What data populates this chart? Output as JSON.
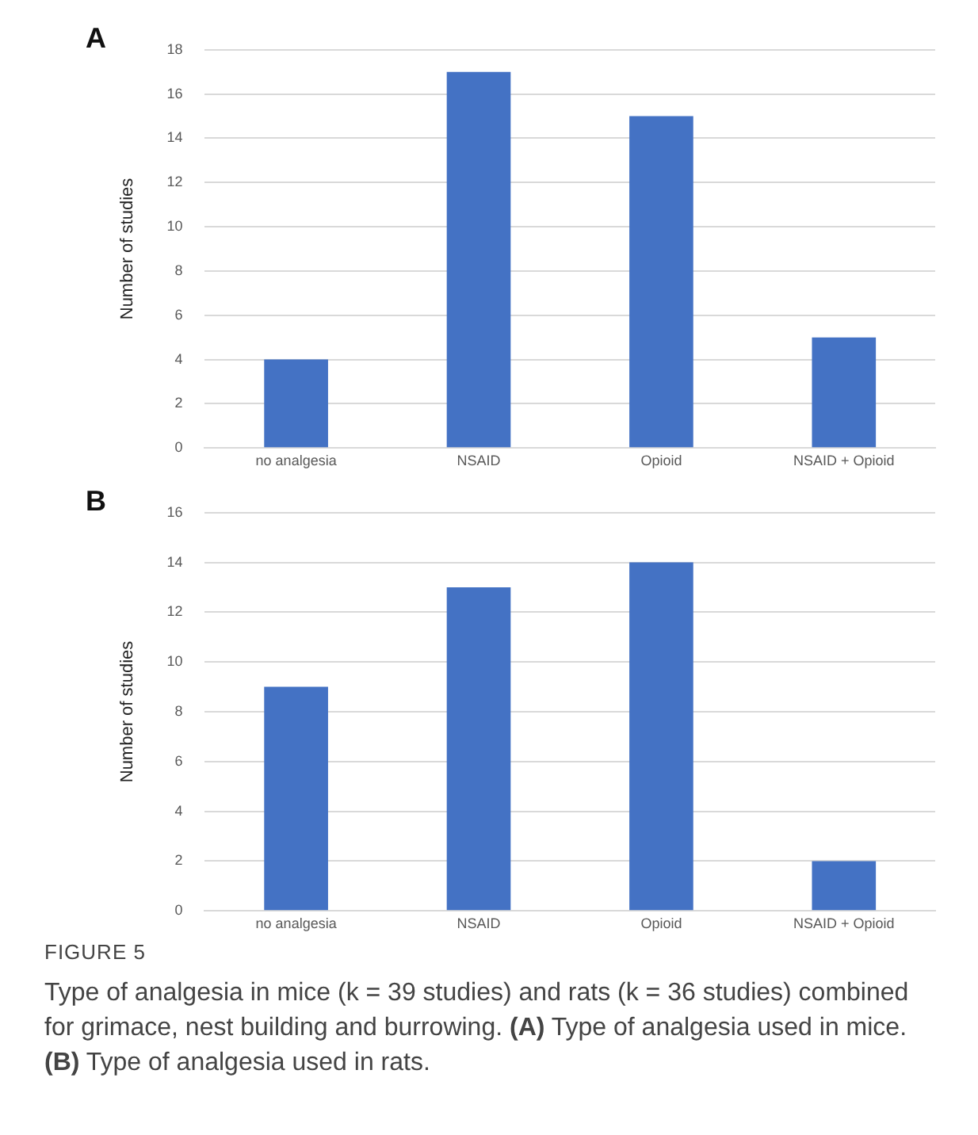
{
  "chart_data": [
    {
      "type": "bar",
      "title": "A",
      "ylabel": "Number of studies",
      "categories": [
        "no analgesia",
        "NSAID",
        "Opioid",
        "NSAID + Opioid"
      ],
      "values": [
        4,
        17,
        15,
        5
      ],
      "color": "#4472c4",
      "ylim": [
        0,
        18
      ],
      "yticks": [
        0,
        2,
        4,
        6,
        8,
        10,
        12,
        14,
        16,
        18
      ],
      "grid": "y",
      "legend": false
    },
    {
      "type": "bar",
      "title": "B",
      "ylabel": "Number of studies",
      "categories": [
        "no analgesia",
        "NSAID",
        "Opioid",
        "NSAID + Opioid"
      ],
      "values": [
        9,
        13,
        14,
        2
      ],
      "color": "#4472c4",
      "ylim": [
        0,
        16
      ],
      "yticks": [
        0,
        2,
        4,
        6,
        8,
        10,
        12,
        14,
        16
      ],
      "grid": "y",
      "legend": false,
      "annotations": [
        "FIGURE 5",
        "Type of analgesia in mice (k = 39 studies) and rats (k = 36 studies) combined for grimace, nest building and burrowing. (A) Type of analgesia used in mice. (B) Type of analgesia used in rats."
      ]
    }
  ]
}
